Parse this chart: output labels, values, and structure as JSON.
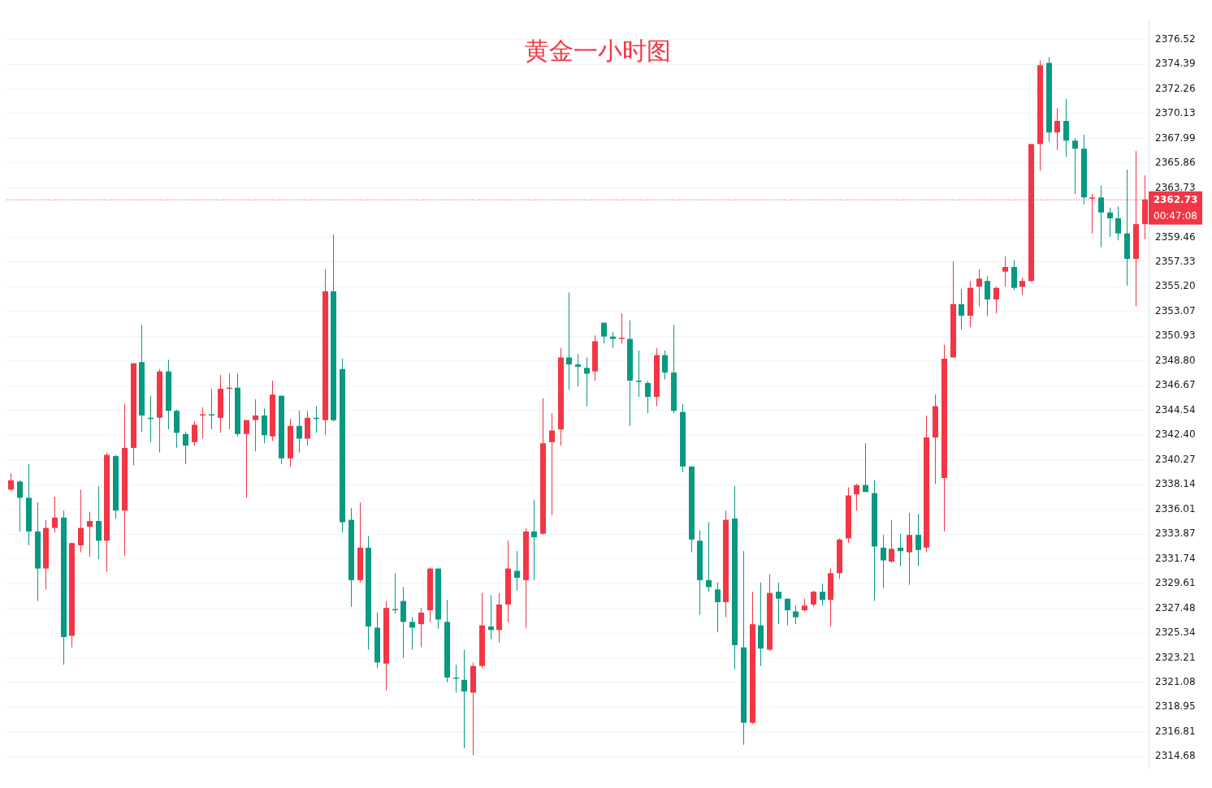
{
  "chart_data": {
    "type": "candlestick",
    "title": "黄金一小时图",
    "categories": [
      null,
      null,
      null,
      null,
      null,
      null,
      null,
      null,
      null,
      null,
      null,
      null,
      null,
      null,
      null,
      null,
      null,
      null,
      null,
      null,
      null,
      null,
      null,
      null,
      null,
      null,
      null,
      null,
      null,
      null,
      null,
      null,
      null,
      null,
      null,
      null,
      null,
      null,
      null,
      null,
      null,
      null,
      null,
      null,
      null,
      null,
      null,
      null,
      null,
      null,
      null,
      null,
      null,
      null,
      null,
      null,
      null,
      null,
      null,
      null,
      null,
      null,
      null,
      null,
      null,
      null,
      null,
      null,
      null,
      null,
      null,
      null,
      null,
      null,
      null,
      null,
      null,
      null,
      null,
      null,
      null,
      null,
      null,
      null,
      null,
      null,
      null,
      null,
      null,
      null,
      null,
      null,
      null,
      null,
      null,
      null,
      null,
      null,
      null,
      null,
      null,
      null,
      null,
      null,
      null,
      null,
      null,
      null,
      null,
      null,
      null,
      null,
      null,
      null,
      null,
      null,
      null,
      null,
      null,
      null,
      null,
      null,
      null,
      null,
      null,
      null,
      null,
      null,
      null,
      null,
      null
    ],
    "ohlc": [
      [
        2337.7,
        2339.1,
        2337.6,
        2338.5
      ],
      [
        2338.4,
        2338.5,
        2334.1,
        2337.0
      ],
      [
        2337.0,
        2339.9,
        2332.9,
        2334.1
      ],
      [
        2334.1,
        2336.6,
        2328.1,
        2330.9
      ],
      [
        2330.9,
        2335.1,
        2329.1,
        2334.4
      ],
      [
        2334.4,
        2337.1,
        2334.0,
        2335.3
      ],
      [
        2335.3,
        2335.9,
        2322.6,
        2325.0
      ],
      [
        2325.1,
        2333.1,
        2324.1,
        2333.1
      ],
      [
        2332.9,
        2337.7,
        2332.3,
        2334.4
      ],
      [
        2334.5,
        2335.8,
        2331.9,
        2335.0
      ],
      [
        2335.0,
        2338.0,
        2331.7,
        2333.3
      ],
      [
        2333.3,
        2340.9,
        2330.6,
        2340.7
      ],
      [
        2340.6,
        2340.7,
        2335.2,
        2335.9
      ],
      [
        2335.9,
        2345.1,
        2332.0,
        2341.3
      ],
      [
        2341.3,
        2348.6,
        2339.8,
        2348.6
      ],
      [
        2348.7,
        2351.9,
        2342.7,
        2344.1
      ],
      [
        2343.9,
        2345.8,
        2341.8,
        2343.8
      ],
      [
        2343.9,
        2348.1,
        2340.9,
        2347.9
      ],
      [
        2347.9,
        2348.9,
        2342.9,
        2344.5
      ],
      [
        2344.5,
        2344.6,
        2341.3,
        2342.6
      ],
      [
        2342.5,
        2342.7,
        2339.9,
        2341.5
      ],
      [
        2341.8,
        2343.6,
        2341.5,
        2343.3
      ],
      [
        2344.1,
        2344.8,
        2342.1,
        2344.2
      ],
      [
        2344.2,
        2346.4,
        2342.9,
        2344.1
      ],
      [
        2343.9,
        2347.6,
        2342.6,
        2346.4
      ],
      [
        2346.4,
        2347.7,
        2342.9,
        2346.5
      ],
      [
        2346.5,
        2347.7,
        2342.3,
        2342.5
      ],
      [
        2342.5,
        2343.7,
        2337.0,
        2343.7
      ],
      [
        2343.7,
        2345.5,
        2341.0,
        2344.1
      ],
      [
        2344.1,
        2344.7,
        2341.7,
        2342.4
      ],
      [
        2342.3,
        2347.1,
        2341.9,
        2345.9
      ],
      [
        2345.8,
        2345.8,
        2339.9,
        2340.4
      ],
      [
        2340.4,
        2343.8,
        2339.7,
        2343.2
      ],
      [
        2343.2,
        2344.5,
        2340.9,
        2342.1
      ],
      [
        2342.1,
        2344.5,
        2341.5,
        2343.9
      ],
      [
        2343.9,
        2344.9,
        2342.6,
        2343.8
      ],
      [
        2343.7,
        2356.7,
        2342.4,
        2354.8
      ],
      [
        2354.8,
        2359.7,
        2343.6,
        2343.7
      ],
      [
        2348.1,
        2349.0,
        2334.0,
        2334.9
      ],
      [
        2335.1,
        2336.1,
        2327.6,
        2329.9
      ],
      [
        2329.9,
        2336.6,
        2329.7,
        2332.7
      ],
      [
        2332.7,
        2333.7,
        2323.9,
        2325.9
      ],
      [
        2325.8,
        2327.1,
        2322.3,
        2322.8
      ],
      [
        2322.7,
        2328.1,
        2320.4,
        2327.5
      ],
      [
        2327.4,
        2330.5,
        2327.0,
        2327.3
      ],
      [
        2328.1,
        2329.3,
        2323.2,
        2326.3
      ],
      [
        2326.3,
        2326.7,
        2323.9,
        2325.8
      ],
      [
        2326.1,
        2327.5,
        2324.1,
        2327.1
      ],
      [
        2327.3,
        2331.0,
        2326.3,
        2330.9
      ],
      [
        2330.9,
        2330.9,
        2325.7,
        2326.5
      ],
      [
        2326.3,
        2328.2,
        2321.1,
        2321.5
      ],
      [
        2321.5,
        2322.6,
        2320.2,
        2321.4
      ],
      [
        2321.3,
        2323.9,
        2315.4,
        2320.3
      ],
      [
        2320.2,
        2322.8,
        2314.8,
        2322.5
      ],
      [
        2322.5,
        2328.8,
        2322.3,
        2326.0
      ],
      [
        2325.9,
        2328.6,
        2324.8,
        2325.6
      ],
      [
        2325.6,
        2328.8,
        2324.5,
        2327.8
      ],
      [
        2327.8,
        2333.3,
        2326.3,
        2330.9
      ],
      [
        2330.7,
        2332.4,
        2329.0,
        2330.1
      ],
      [
        2329.9,
        2334.4,
        2325.8,
        2334.1
      ],
      [
        2334.1,
        2336.8,
        2329.9,
        2333.6
      ],
      [
        2333.9,
        2345.6,
        2333.8,
        2341.7
      ],
      [
        2341.8,
        2344.3,
        2335.5,
        2342.8
      ],
      [
        2342.9,
        2349.9,
        2341.5,
        2349.1
      ],
      [
        2349.1,
        2354.7,
        2346.3,
        2348.5
      ],
      [
        2348.5,
        2349.4,
        2346.6,
        2348.3
      ],
      [
        2348.2,
        2349.1,
        2344.9,
        2347.7
      ],
      [
        2347.9,
        2351.0,
        2347.1,
        2350.5
      ],
      [
        2352.1,
        2352.1,
        2350.3,
        2350.9
      ],
      [
        2350.9,
        2351.3,
        2349.9,
        2350.7
      ],
      [
        2350.7,
        2352.9,
        2350.3,
        2350.8
      ],
      [
        2350.7,
        2352.3,
        2343.2,
        2347.1
      ],
      [
        2347.1,
        2349.7,
        2345.7,
        2347.0
      ],
      [
        2346.9,
        2347.1,
        2344.3,
        2345.7
      ],
      [
        2345.7,
        2349.9,
        2344.9,
        2349.3
      ],
      [
        2349.3,
        2349.7,
        2347.2,
        2347.8
      ],
      [
        2347.8,
        2351.9,
        2344.3,
        2344.5
      ],
      [
        2344.4,
        2345.1,
        2339.2,
        2339.7
      ],
      [
        2339.7,
        2339.7,
        2332.3,
        2333.4
      ],
      [
        2333.3,
        2334.2,
        2326.9,
        2329.9
      ],
      [
        2329.9,
        2334.9,
        2328.9,
        2329.3
      ],
      [
        2329.1,
        2329.7,
        2325.4,
        2328.0
      ],
      [
        2328.0,
        2335.9,
        2326.7,
        2335.1
      ],
      [
        2335.2,
        2338.0,
        2322.2,
        2324.3
      ],
      [
        2324.1,
        2332.4,
        2315.7,
        2317.6
      ],
      [
        2317.6,
        2328.9,
        2317.5,
        2326.1
      ],
      [
        2326.0,
        2329.7,
        2322.5,
        2324.0
      ],
      [
        2323.9,
        2330.4,
        2323.8,
        2328.8
      ],
      [
        2328.9,
        2329.7,
        2326.1,
        2328.3
      ],
      [
        2328.3,
        2328.3,
        2326.0,
        2327.3
      ],
      [
        2327.2,
        2327.7,
        2326.1,
        2326.7
      ],
      [
        2327.3,
        2328.3,
        2327.2,
        2327.7
      ],
      [
        2327.8,
        2329.0,
        2327.6,
        2328.9
      ],
      [
        2328.9,
        2329.6,
        2327.7,
        2328.2
      ],
      [
        2328.2,
        2330.9,
        2325.9,
        2330.5
      ],
      [
        2330.5,
        2333.5,
        2330.0,
        2333.4
      ],
      [
        2333.5,
        2337.9,
        2333.1,
        2337.2
      ],
      [
        2337.3,
        2338.2,
        2335.9,
        2338.1
      ],
      [
        2338.1,
        2341.7,
        2337.5,
        2337.5
      ],
      [
        2337.4,
        2338.5,
        2328.1,
        2332.8
      ],
      [
        2332.7,
        2333.8,
        2329.2,
        2331.6
      ],
      [
        2331.5,
        2335.1,
        2331.4,
        2332.6
      ],
      [
        2332.7,
        2333.9,
        2331.1,
        2332.4
      ],
      [
        2332.3,
        2335.7,
        2329.5,
        2333.8
      ],
      [
        2333.8,
        2335.6,
        2331.1,
        2332.5
      ],
      [
        2332.7,
        2344.1,
        2332.3,
        2342.2
      ],
      [
        2342.2,
        2345.9,
        2338.2,
        2344.9
      ],
      [
        2338.7,
        2350.2,
        2334.1,
        2349.0
      ],
      [
        2349.1,
        2357.4,
        2349.1,
        2353.7
      ],
      [
        2353.7,
        2355.0,
        2351.5,
        2352.7
      ],
      [
        2352.7,
        2355.7,
        2351.7,
        2355.1
      ],
      [
        2355.2,
        2356.7,
        2353.5,
        2355.9
      ],
      [
        2355.7,
        2356.1,
        2352.7,
        2354.1
      ],
      [
        2354.1,
        2355.2,
        2352.9,
        2355.1
      ],
      [
        2356.5,
        2357.8,
        2355.2,
        2356.9
      ],
      [
        2356.9,
        2357.5,
        2354.9,
        2355.1
      ],
      [
        2355.2,
        2356.0,
        2354.5,
        2355.7
      ],
      [
        2355.7,
        2367.5,
        2355.6,
        2367.5
      ],
      [
        2367.5,
        2374.7,
        2365.2,
        2374.3
      ],
      [
        2374.5,
        2375.0,
        2367.7,
        2368.5
      ],
      [
        2368.5,
        2370.6,
        2367.0,
        2369.5
      ],
      [
        2369.5,
        2371.4,
        2366.4,
        2367.8
      ],
      [
        2367.8,
        2368.0,
        2363.2,
        2367.1
      ],
      [
        2367.1,
        2368.3,
        2362.3,
        2362.9
      ],
      [
        2362.8,
        2363.2,
        2359.8,
        2362.9
      ],
      [
        2362.9,
        2363.9,
        2358.6,
        2361.6
      ],
      [
        2361.6,
        2362.0,
        2359.5,
        2361.1
      ],
      [
        2361.1,
        2362.1,
        2359.2,
        2359.8
      ],
      [
        2359.8,
        2365.3,
        2355.3,
        2357.6
      ],
      [
        2357.6,
        2366.9,
        2353.5,
        2360.6
      ],
      [
        2360.6,
        2364.8,
        2359.3,
        2362.73
      ]
    ],
    "ylim": [
      2313.6,
      2378.3
    ],
    "yticks": [
      2376.52,
      2374.39,
      2372.26,
      2370.13,
      2367.99,
      2365.86,
      2363.73,
      2359.46,
      2357.33,
      {
        "value": 2355.2,
        "label": "2355.20"
      },
      2353.07,
      2350.93,
      {
        "value": 2348.8,
        "label": "2348.80"
      },
      2346.67,
      2344.54,
      {
        "value": 2342.4,
        "label": "2342.40"
      },
      2340.27,
      2338.14,
      2336.01,
      2333.87,
      2331.74,
      2329.61,
      2327.48,
      2325.34,
      2323.21,
      2321.08,
      2318.95,
      2316.81,
      2314.68
    ],
    "grid": "y",
    "ref_lines": [
      {
        "axis": "y",
        "value": 2362.73,
        "label": "2362.73",
        "color": "#f23645",
        "line_style": "dotted"
      }
    ],
    "annotations": [
      "00:47:08"
    ]
  }
}
